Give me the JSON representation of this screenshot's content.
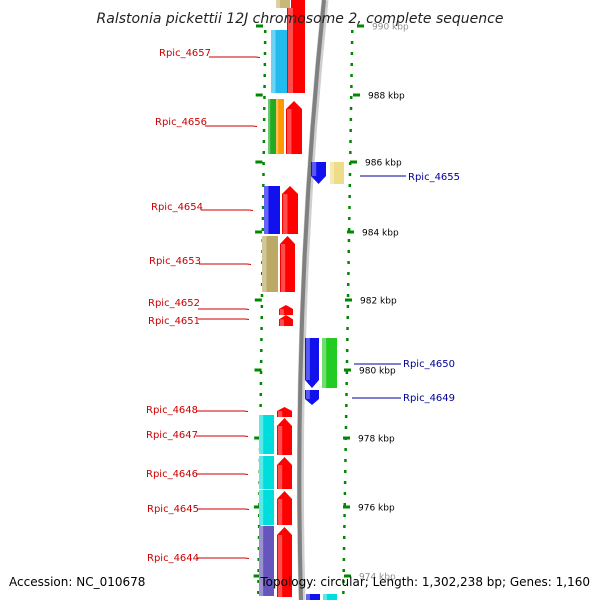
{
  "header": {
    "title": "Ralstonia pickettii 12J chromosome 2, complete sequence"
  },
  "footer": {
    "accession": "Accession: NC_010678",
    "summary": "Topology: circular; Length: 1,302,238 bp; Genes: 1,160"
  },
  "colors": {
    "left_label": "#cc0000",
    "right_label": "#000099",
    "scale_dot": "#008800",
    "backbone": "#808080"
  },
  "scale": {
    "unit": "kbp",
    "ticks": [
      {
        "label": "990 kbp",
        "kbp": 990
      },
      {
        "label": "988 kbp",
        "kbp": 988
      },
      {
        "label": "986 kbp",
        "kbp": 986
      },
      {
        "label": "984 kbp",
        "kbp": 984
      },
      {
        "label": "982 kbp",
        "kbp": 982
      },
      {
        "label": "980 kbp",
        "kbp": 980
      },
      {
        "label": "978 kbp",
        "kbp": 978
      },
      {
        "label": "976 kbp",
        "kbp": 976
      },
      {
        "label": "974 kbp",
        "kbp": 974
      }
    ]
  },
  "genes": [
    {
      "name": "Rpic_4657",
      "side": "left"
    },
    {
      "name": "Rpic_4656",
      "side": "left"
    },
    {
      "name": "Rpic_4655",
      "side": "right"
    },
    {
      "name": "Rpic_4654",
      "side": "left"
    },
    {
      "name": "Rpic_4653",
      "side": "left"
    },
    {
      "name": "Rpic_4652",
      "side": "left"
    },
    {
      "name": "Rpic_4651",
      "side": "left"
    },
    {
      "name": "Rpic_4650",
      "side": "right"
    },
    {
      "name": "Rpic_4649",
      "side": "right"
    },
    {
      "name": "Rpic_4648",
      "side": "left"
    },
    {
      "name": "Rpic_4647",
      "side": "left"
    },
    {
      "name": "Rpic_4646",
      "side": "left"
    },
    {
      "name": "Rpic_4645",
      "side": "left"
    },
    {
      "name": "Rpic_4644",
      "side": "left"
    }
  ]
}
